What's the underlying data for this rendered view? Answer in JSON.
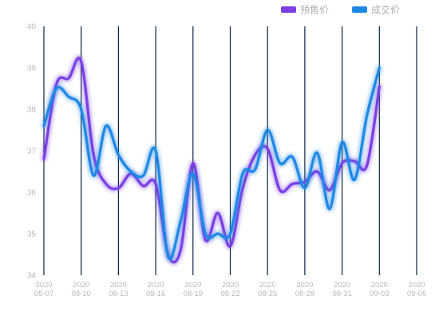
{
  "chart_data": {
    "type": "line",
    "x": [
      "2020-08-07",
      "2020-08-10",
      "2020-08-13",
      "2020-08-16",
      "2020-08-19",
      "2020-08-22",
      "2020-08-25",
      "2020-08-28",
      "2020-08-31",
      "2020-09-03",
      "2020-09-06"
    ],
    "x_tick_labels": [
      [
        "2020",
        "08-07"
      ],
      [
        "2020",
        "08-10"
      ],
      [
        "2020",
        "08-13"
      ],
      [
        "2020",
        "08-16"
      ],
      [
        "2020",
        "08-19"
      ],
      [
        "2020",
        "08-22"
      ],
      [
        "2020",
        "08-25"
      ],
      [
        "2020",
        "08-28"
      ],
      [
        "2020",
        "08-31"
      ],
      [
        "2020",
        "09-03"
      ],
      [
        "2020",
        "09-06"
      ]
    ],
    "ylim": [
      34,
      40
    ],
    "y_ticks": [
      34,
      35,
      36,
      37,
      38,
      39,
      40
    ],
    "grid": "vertical",
    "legend_position": "top-right",
    "series": [
      {
        "name": "预售价",
        "color": "#7b3fe4",
        "points": [
          [
            "2020-08-07",
            36.8
          ],
          [
            "2020-08-08",
            38.6
          ],
          [
            "2020-08-09",
            38.75
          ],
          [
            "2020-08-10",
            39.15
          ],
          [
            "2020-08-11",
            36.9
          ],
          [
            "2020-08-12",
            36.2
          ],
          [
            "2020-08-13",
            36.1
          ],
          [
            "2020-08-14",
            36.45
          ],
          [
            "2020-08-15",
            36.15
          ],
          [
            "2020-08-16",
            36.2
          ],
          [
            "2020-08-17",
            34.5
          ],
          [
            "2020-08-18",
            34.6
          ],
          [
            "2020-08-19",
            36.7
          ],
          [
            "2020-08-20",
            34.85
          ],
          [
            "2020-08-21",
            35.5
          ],
          [
            "2020-08-22",
            34.7
          ],
          [
            "2020-08-23",
            36.1
          ],
          [
            "2020-08-24",
            36.9
          ],
          [
            "2020-08-25",
            37.05
          ],
          [
            "2020-08-26",
            36.05
          ],
          [
            "2020-08-27",
            36.2
          ],
          [
            "2020-08-28",
            36.25
          ],
          [
            "2020-08-29",
            36.5
          ],
          [
            "2020-08-30",
            36.05
          ],
          [
            "2020-08-31",
            36.7
          ],
          [
            "2020-09-01",
            36.75
          ],
          [
            "2020-09-02",
            36.65
          ],
          [
            "2020-09-03",
            38.55
          ]
        ]
      },
      {
        "name": "成交价",
        "color": "#1e88e5",
        "points": [
          [
            "2020-08-07",
            37.6
          ],
          [
            "2020-08-08",
            38.5
          ],
          [
            "2020-08-09",
            38.3
          ],
          [
            "2020-08-10",
            38.0
          ],
          [
            "2020-08-11",
            36.4
          ],
          [
            "2020-08-12",
            37.6
          ],
          [
            "2020-08-13",
            36.9
          ],
          [
            "2020-08-14",
            36.5
          ],
          [
            "2020-08-15",
            36.4
          ],
          [
            "2020-08-16",
            37.0
          ],
          [
            "2020-08-17",
            34.45
          ],
          [
            "2020-08-18",
            35.3
          ],
          [
            "2020-08-19",
            36.45
          ],
          [
            "2020-08-20",
            35.0
          ],
          [
            "2020-08-21",
            35.0
          ],
          [
            "2020-08-22",
            35.0
          ],
          [
            "2020-08-23",
            36.45
          ],
          [
            "2020-08-24",
            36.55
          ],
          [
            "2020-08-25",
            37.5
          ],
          [
            "2020-08-26",
            36.7
          ],
          [
            "2020-08-27",
            36.85
          ],
          [
            "2020-08-28",
            36.1
          ],
          [
            "2020-08-29",
            36.95
          ],
          [
            "2020-08-30",
            35.6
          ],
          [
            "2020-08-31",
            37.2
          ],
          [
            "2020-09-01",
            36.3
          ],
          [
            "2020-09-02",
            37.85
          ],
          [
            "2020-09-03",
            39.0
          ]
        ]
      }
    ]
  }
}
